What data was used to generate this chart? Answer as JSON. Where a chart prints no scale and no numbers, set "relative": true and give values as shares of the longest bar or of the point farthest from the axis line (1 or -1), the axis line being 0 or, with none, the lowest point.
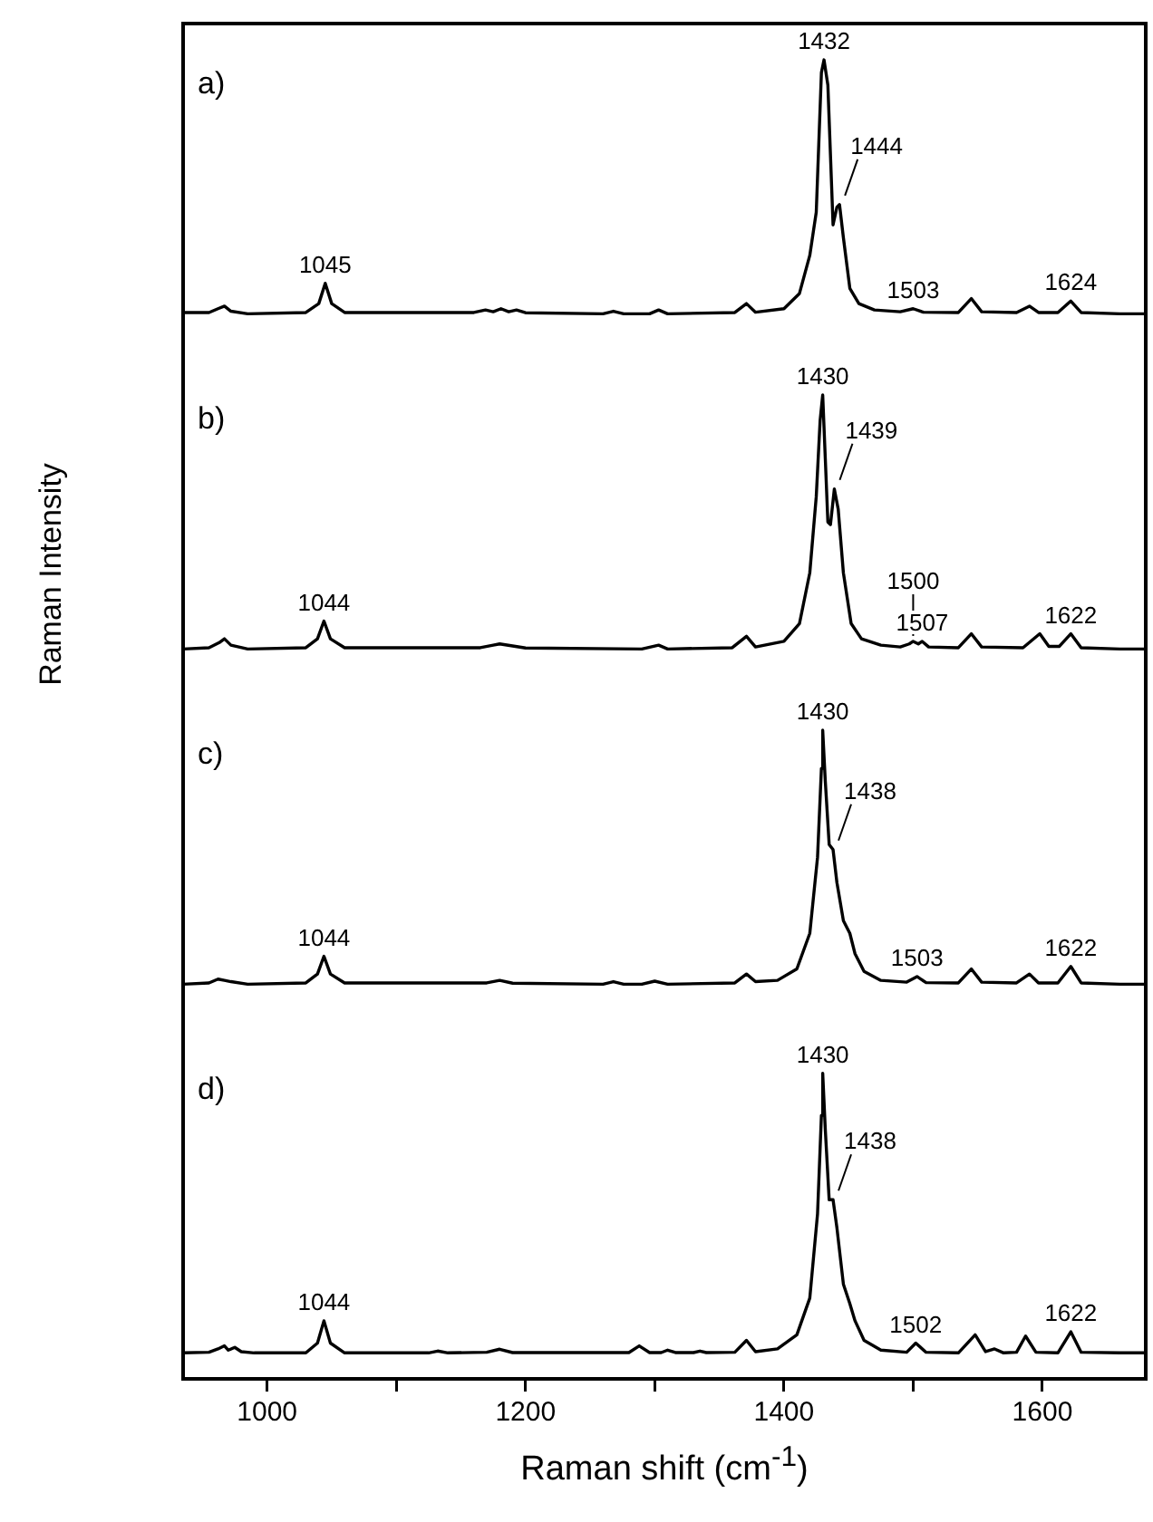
{
  "chart_data": [
    {
      "type": "line",
      "relative": true,
      "tick_labels": false,
      "xlim": [
        935,
        1680
      ],
      "legend": false,
      "grid": false,
      "x": [
        935,
        955,
        962,
        967,
        972,
        985,
        1030,
        1040,
        1045,
        1050,
        1060,
        1160,
        1169,
        1175,
        1181,
        1187,
        1193,
        1200,
        1260,
        1268,
        1276,
        1296,
        1303,
        1310,
        1362,
        1371,
        1378,
        1400,
        1412,
        1420,
        1425,
        1429,
        1431,
        1434,
        1438,
        1441,
        1443,
        1446,
        1451,
        1458,
        1470,
        1490,
        1500,
        1508,
        1535,
        1545,
        1553,
        1580,
        1590,
        1597,
        1612,
        1622,
        1630,
        1660,
        1680
      ],
      "series": [
        {
          "color": "#000000",
          "values": [
            0.005,
            0.005,
            0.02,
            0.03,
            0.01,
            0,
            0.005,
            0.04,
            0.12,
            0.04,
            0.005,
            0.005,
            0.015,
            0.008,
            0.02,
            0.008,
            0.015,
            0.004,
            0,
            0.01,
            0,
            0,
            0.015,
            0,
            0.005,
            0.04,
            0.006,
            0.02,
            0.08,
            0.23,
            0.4,
            0.95,
            1,
            0.9,
            0.35,
            0.42,
            0.43,
            0.3,
            0.1,
            0.04,
            0.015,
            0.008,
            0.02,
            0.006,
            0.005,
            0.06,
            0.008,
            0.005,
            0.03,
            0.005,
            0.005,
            0.05,
            0.005,
            0,
            0
          ]
        }
      ],
      "annotations": [
        "a)",
        {
          "text": "1045",
          "x": 1045,
          "y": 0.12
        },
        {
          "text": "1432",
          "x": 1431,
          "y": 1
        },
        {
          "text": "1444",
          "x": 1443,
          "y": 0.43
        },
        {
          "text": "1503",
          "x": 1500,
          "y": 0.02
        },
        {
          "text": "1624",
          "x": 1622,
          "y": 0.05
        }
      ]
    },
    {
      "type": "line",
      "relative": true,
      "ylabel": "Raman Intensity",
      "tick_labels": false,
      "xlim": [
        935,
        1680
      ],
      "legend": false,
      "grid": false,
      "x": [
        935,
        955,
        963,
        967,
        972,
        985,
        1030,
        1039,
        1044,
        1049,
        1060,
        1165,
        1175,
        1180,
        1190,
        1200,
        1290,
        1303,
        1310,
        1360,
        1371,
        1378,
        1400,
        1412,
        1420,
        1425,
        1428,
        1430,
        1432,
        1434,
        1436,
        1439,
        1442,
        1446,
        1452,
        1460,
        1475,
        1490,
        1497,
        1500,
        1504,
        1507,
        1512,
        1535,
        1545,
        1553,
        1585,
        1598,
        1605,
        1613,
        1622,
        1630,
        1660,
        1680
      ],
      "series": [
        {
          "color": "#000000",
          "values": [
            0,
            0.005,
            0.025,
            0.04,
            0.015,
            0,
            0.005,
            0.04,
            0.11,
            0.04,
            0.005,
            0.005,
            0.015,
            0.02,
            0.012,
            0.004,
            0,
            0.015,
            0,
            0.005,
            0.05,
            0.008,
            0.03,
            0.1,
            0.3,
            0.6,
            0.9,
            1,
            0.75,
            0.5,
            0.49,
            0.63,
            0.55,
            0.3,
            0.1,
            0.04,
            0.015,
            0.008,
            0.02,
            0.03,
            0.02,
            0.03,
            0.008,
            0.005,
            0.06,
            0.008,
            0.005,
            0.06,
            0.01,
            0.01,
            0.06,
            0.005,
            0,
            0
          ]
        }
      ],
      "annotations": [
        "b)",
        {
          "text": "1044",
          "x": 1044,
          "y": 0.11
        },
        {
          "text": "1430",
          "x": 1430,
          "y": 1
        },
        {
          "text": "1439",
          "x": 1439,
          "y": 0.63
        },
        {
          "text": "1507",
          "x": 1507,
          "y": 0.03
        },
        {
          "text": "1500",
          "x": 1500,
          "y": 0.03
        },
        {
          "text": "1622",
          "x": 1622,
          "y": 0.06
        }
      ]
    },
    {
      "type": "line",
      "relative": true,
      "tick_labels": false,
      "xlim": [
        935,
        1680
      ],
      "legend": false,
      "grid": false,
      "x": [
        935,
        955,
        962,
        967,
        972,
        985,
        1030,
        1039,
        1044,
        1049,
        1060,
        1170,
        1180,
        1190,
        1260,
        1268,
        1276,
        1290,
        1300,
        1310,
        1362,
        1371,
        1378,
        1395,
        1410,
        1420,
        1426,
        1429,
        1430,
        1432,
        1435,
        1438,
        1441,
        1446,
        1451,
        1455,
        1462,
        1475,
        1495,
        1503,
        1510,
        1535,
        1545,
        1553,
        1580,
        1590,
        1597,
        1612,
        1622,
        1630,
        1660,
        1680
      ],
      "series": [
        {
          "color": "#000000",
          "values": [
            0,
            0.005,
            0.02,
            0.015,
            0.01,
            0,
            0.005,
            0.04,
            0.11,
            0.04,
            0.005,
            0.005,
            0.015,
            0.004,
            0,
            0.01,
            0,
            0,
            0.012,
            0,
            0.005,
            0.04,
            0.01,
            0.015,
            0.06,
            0.2,
            0.5,
            0.85,
            1,
            0.8,
            0.55,
            0.53,
            0.4,
            0.25,
            0.2,
            0.12,
            0.05,
            0.015,
            0.008,
            0.03,
            0.006,
            0.005,
            0.06,
            0.008,
            0.005,
            0.04,
            0.005,
            0.005,
            0.07,
            0.005,
            0,
            0
          ]
        }
      ],
      "annotations": [
        "c)",
        {
          "text": "1044",
          "x": 1044,
          "y": 0.11
        },
        {
          "text": "1430",
          "x": 1430,
          "y": 1
        },
        {
          "text": "1438",
          "x": 1438,
          "y": 0.53
        },
        {
          "text": "1503",
          "x": 1503,
          "y": 0.03
        },
        {
          "text": "1622",
          "x": 1622,
          "y": 0.07
        }
      ]
    },
    {
      "type": "line",
      "relative": true,
      "tick_labels": "x",
      "xlim": [
        935,
        1680
      ],
      "xticks": [
        1000,
        {
          "value": 1100,
          "label": null
        },
        1200,
        {
          "value": 1300,
          "label": null
        },
        1400,
        {
          "value": 1500,
          "label": null
        },
        1600
      ],
      "xlabel": "Raman shift (cm$^{-1}$)",
      "legend": false,
      "grid": false,
      "x": [
        935,
        955,
        962,
        967,
        970,
        975,
        980,
        990,
        1030,
        1039,
        1044,
        1049,
        1060,
        1125,
        1132,
        1140,
        1170,
        1180,
        1190,
        1280,
        1288,
        1296,
        1305,
        1310,
        1316,
        1330,
        1335,
        1340,
        1362,
        1371,
        1378,
        1395,
        1410,
        1420,
        1426,
        1429,
        1430,
        1432,
        1435,
        1438,
        1441,
        1446,
        1451,
        1455,
        1462,
        1475,
        1495,
        1502,
        1510,
        1535,
        1548,
        1556,
        1563,
        1570,
        1580,
        1587,
        1595,
        1612,
        1622,
        1630,
        1660,
        1680
      ],
      "series": [
        {
          "color": "#000000",
          "values": [
            0.085,
            0.087,
            0.098,
            0.108,
            0.094,
            0.103,
            0.089,
            0.085,
            0.085,
            0.117,
            0.19,
            0.117,
            0.085,
            0.085,
            0.091,
            0.085,
            0.087,
            0.097,
            0.086,
            0.086,
            0.108,
            0.086,
            0.086,
            0.094,
            0.086,
            0.086,
            0.091,
            0.086,
            0.087,
            0.126,
            0.089,
            0.098,
            0.144,
            0.264,
            0.54,
            0.862,
            1,
            0.816,
            0.586,
            0.586,
            0.494,
            0.31,
            0.246,
            0.19,
            0.126,
            0.094,
            0.087,
            0.117,
            0.087,
            0.085,
            0.144,
            0.089,
            0.098,
            0.085,
            0.087,
            0.14,
            0.087,
            0.085,
            0.154,
            0.087,
            0.085,
            0.085
          ]
        }
      ],
      "annotations": [
        "d)",
        {
          "text": "1044",
          "x": 1044,
          "y": 0.19
        },
        {
          "text": "1430",
          "x": 1430,
          "y": 1
        },
        {
          "text": "1438",
          "x": 1438,
          "y": 0.586
        },
        {
          "text": "1502",
          "x": 1502,
          "y": 0.117
        },
        {
          "text": "1622",
          "x": 1622,
          "y": 0.154
        }
      ]
    }
  ]
}
